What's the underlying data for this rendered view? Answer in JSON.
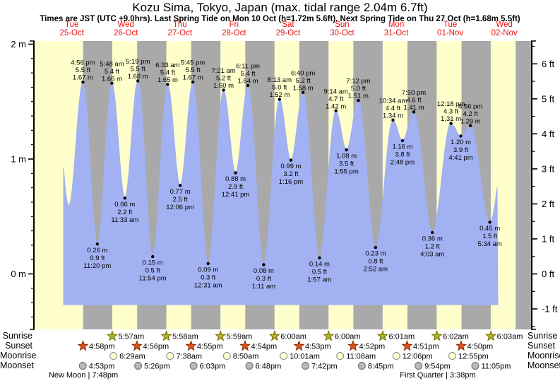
{
  "title": "Kozu Sima, Tokyo, Japan (max. tidal range 2.04m 6.7ft)",
  "subtitle": "Times are JST (UTC +9.0hrs). Last Spring Tide on Mon 10 Oct (h=1.72m 5.6ft). Next Spring Tide on Thu 27 Oct (h=1.68m 5.5ft)",
  "days": [
    {
      "dow": "Tue",
      "date": "25-Oct"
    },
    {
      "dow": "Wed",
      "date": "26-Oct"
    },
    {
      "dow": "Thu",
      "date": "27-Oct"
    },
    {
      "dow": "Fri",
      "date": "28-Oct"
    },
    {
      "dow": "Sat",
      "date": "29-Oct"
    },
    {
      "dow": "Sun",
      "date": "30-Oct"
    },
    {
      "dow": "Mon",
      "date": "31-Oct"
    },
    {
      "dow": "Tue",
      "date": "01-Nov"
    },
    {
      "dow": "Wed",
      "date": "02-Nov"
    }
  ],
  "chart_data": {
    "type": "area",
    "title": "Kozu Sima, Tokyo, Japan (max. tidal range 2.04m 6.7ft)",
    "x_categories": [
      "Tue 25-Oct",
      "Wed 26-Oct",
      "Thu 27-Oct",
      "Fri 28-Oct",
      "Sat 29-Oct",
      "Sun 30-Oct",
      "Mon 31-Oct",
      "Tue 01-Nov",
      "Wed 02-Nov"
    ],
    "y_axis_left": {
      "unit": "m",
      "labels": [
        "2 m",
        "1 m",
        "0 m"
      ],
      "major_values_m": [
        2,
        1,
        0
      ]
    },
    "y_axis_right": {
      "unit": "ft",
      "labels": [
        "6 ft",
        "5 ft",
        "4 ft",
        "3 ft",
        "2 ft",
        "1 ft",
        "0 ft",
        "-1 ft"
      ],
      "major_values_ft": [
        6,
        5,
        4,
        3,
        2,
        1,
        0,
        -1
      ]
    },
    "tide_events": [
      {
        "type": "low",
        "day": 0,
        "time": "10:40 am",
        "height_m": 0.59,
        "labeled": false
      },
      {
        "type": "high",
        "day": 0,
        "time": "4:56 pm",
        "height_m": 1.67,
        "height_ft": 5.5,
        "labeled": true
      },
      {
        "type": "low",
        "day": 0,
        "time": "11:20 pm",
        "height_m": 0.26,
        "height_ft": 0.9,
        "labeled": true
      },
      {
        "type": "high",
        "day": 1,
        "time": "5:48 am",
        "height_m": 1.66,
        "height_ft": 5.4,
        "labeled": true
      },
      {
        "type": "low",
        "day": 1,
        "time": "11:33 am",
        "height_m": 0.66,
        "height_ft": 2.2,
        "labeled": true
      },
      {
        "type": "high",
        "day": 1,
        "time": "5:19 pm",
        "height_m": 1.68,
        "height_ft": 5.5,
        "labeled": true
      },
      {
        "type": "low",
        "day": 1,
        "time": "11:54 pm",
        "height_m": 0.15,
        "height_ft": 0.5,
        "labeled": true
      },
      {
        "type": "high",
        "day": 2,
        "time": "6:33 am",
        "height_m": 1.65,
        "height_ft": 5.4,
        "labeled": true
      },
      {
        "type": "low",
        "day": 2,
        "time": "12:06 pm",
        "height_m": 0.77,
        "height_ft": 2.5,
        "labeled": true
      },
      {
        "type": "high",
        "day": 2,
        "time": "5:45 pm",
        "height_m": 1.67,
        "height_ft": 5.5,
        "labeled": true
      },
      {
        "type": "low",
        "day": 3,
        "time": "12:31 am",
        "height_m": 0.09,
        "height_ft": 0.3,
        "labeled": true
      },
      {
        "type": "high",
        "day": 3,
        "time": "7:21 am",
        "height_m": 1.6,
        "height_ft": 5.2,
        "labeled": true
      },
      {
        "type": "low",
        "day": 3,
        "time": "12:41 pm",
        "height_m": 0.88,
        "height_ft": 2.9,
        "labeled": true
      },
      {
        "type": "high",
        "day": 3,
        "time": "6:11 pm",
        "height_m": 1.64,
        "height_ft": 5.4,
        "labeled": true
      },
      {
        "type": "low",
        "day": 4,
        "time": "1:11 am",
        "height_m": 0.08,
        "height_ft": 0.3,
        "labeled": true
      },
      {
        "type": "high",
        "day": 4,
        "time": "8:13 am",
        "height_m": 1.52,
        "height_ft": 5.0,
        "labeled": true
      },
      {
        "type": "low",
        "day": 4,
        "time": "1:16 pm",
        "height_m": 0.99,
        "height_ft": 3.2,
        "labeled": true
      },
      {
        "type": "high",
        "day": 4,
        "time": "6:40 pm",
        "height_m": 1.58,
        "height_ft": 5.2,
        "labeled": true
      },
      {
        "type": "low",
        "day": 5,
        "time": "1:57 am",
        "height_m": 0.14,
        "height_ft": 0.5,
        "labeled": true
      },
      {
        "type": "high",
        "day": 5,
        "time": "9:14 am",
        "height_m": 1.42,
        "height_ft": 4.7,
        "labeled": true
      },
      {
        "type": "low",
        "day": 5,
        "time": "1:55 pm",
        "height_m": 1.08,
        "height_ft": 3.5,
        "labeled": true
      },
      {
        "type": "high",
        "day": 5,
        "time": "7:12 pm",
        "height_m": 1.51,
        "height_ft": 5.0,
        "labeled": true
      },
      {
        "type": "low",
        "day": 6,
        "time": "2:52 am",
        "height_m": 0.23,
        "height_ft": 0.8,
        "labeled": true
      },
      {
        "type": "high",
        "day": 6,
        "time": "10:34 am",
        "height_m": 1.34,
        "height_ft": 4.4,
        "labeled": true
      },
      {
        "type": "low",
        "day": 6,
        "time": "2:48 pm",
        "height_m": 1.16,
        "height_ft": 3.8,
        "labeled": true
      },
      {
        "type": "high",
        "day": 6,
        "time": "7:50 pm",
        "height_m": 1.41,
        "height_ft": 4.6,
        "labeled": true
      },
      {
        "type": "low",
        "day": 7,
        "time": "4:03 am",
        "height_m": 0.36,
        "height_ft": 1.2,
        "labeled": true
      },
      {
        "type": "high",
        "day": 7,
        "time": "12:18 pm",
        "height_m": 1.31,
        "height_ft": 4.3,
        "labeled": true
      },
      {
        "type": "low",
        "day": 7,
        "time": "4:41 pm",
        "height_m": 1.2,
        "height_ft": 3.9,
        "labeled": true
      },
      {
        "type": "high",
        "day": 7,
        "time": "8:56 pm",
        "height_m": 1.29,
        "height_ft": 4.2,
        "labeled": true
      },
      {
        "type": "low",
        "day": 8,
        "time": "5:34 am",
        "height_m": 0.45,
        "height_ft": 1.5,
        "labeled": true
      }
    ]
  },
  "astro": {
    "row_labels_left": [
      "Sunrise",
      "Sunset",
      "Moonrise",
      "Moonset"
    ],
    "row_labels_right": [
      "Sunrise",
      "Sunset",
      "Moonrise",
      "Moonset"
    ],
    "sunrise": [
      {
        "day": 1,
        "time": "5:57am"
      },
      {
        "day": 2,
        "time": "5:58am"
      },
      {
        "day": 3,
        "time": "5:59am"
      },
      {
        "day": 4,
        "time": "6:00am"
      },
      {
        "day": 5,
        "time": "6:00am"
      },
      {
        "day": 6,
        "time": "6:01am"
      },
      {
        "day": 7,
        "time": "6:02am"
      },
      {
        "day": 8,
        "time": "6:03am"
      }
    ],
    "sunset": [
      {
        "day": 0,
        "time": "4:58pm"
      },
      {
        "day": 1,
        "time": "4:56pm"
      },
      {
        "day": 2,
        "time": "4:55pm"
      },
      {
        "day": 3,
        "time": "4:54pm"
      },
      {
        "day": 4,
        "time": "4:53pm"
      },
      {
        "day": 5,
        "time": "4:52pm"
      },
      {
        "day": 6,
        "time": "4:51pm"
      },
      {
        "day": 7,
        "time": "4:50pm"
      }
    ],
    "moonrise": [
      {
        "day": 1,
        "time": "6:29am"
      },
      {
        "day": 2,
        "time": "7:38am"
      },
      {
        "day": 3,
        "time": "8:50am"
      },
      {
        "day": 4,
        "time": "10:01am"
      },
      {
        "day": 5,
        "time": "11:08am"
      },
      {
        "day": 6,
        "time": "12:06pm"
      },
      {
        "day": 7,
        "time": "12:55pm"
      }
    ],
    "moonset": [
      {
        "day": 0,
        "time": "4:53pm"
      },
      {
        "day": 1,
        "time": "5:26pm"
      },
      {
        "day": 2,
        "time": "6:03pm"
      },
      {
        "day": 3,
        "time": "6:48pm"
      },
      {
        "day": 4,
        "time": "7:42pm"
      },
      {
        "day": 5,
        "time": "8:45pm"
      },
      {
        "day": 6,
        "time": "9:54pm"
      },
      {
        "day": 7,
        "time": "11:05pm"
      }
    ],
    "phases": [
      {
        "label": "New Moon",
        "time": "7:48pm"
      },
      {
        "label": "First Quarter",
        "time": "3:38pm"
      }
    ]
  },
  "colors": {
    "day_band": "#ffffcc",
    "night_band": "#a9a9a9",
    "tide_area": "#a2b1f2",
    "date_label": "#ee1111",
    "sunrise_star": "#b2b125",
    "sunrise_star_edge": "#6e6e00",
    "sunset_star": "#e2511c",
    "sunset_star_edge": "#8b2500",
    "moonrise_circle": "#ffffcc",
    "moonrise_circle_edge": "#8a8a8a",
    "moonset_circle": "#b9b9b9",
    "moonset_circle_edge": "#6e6e6e"
  }
}
